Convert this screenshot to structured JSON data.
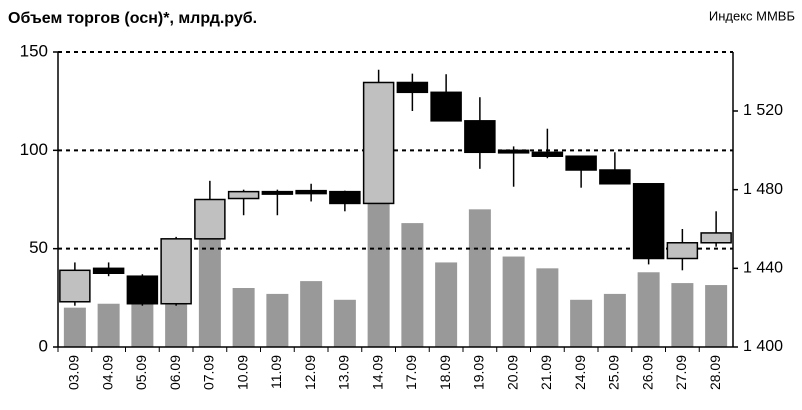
{
  "chart_data": {
    "type": "bar-candlestick",
    "title": "Объем торгов (осн)*, млрд.руб.",
    "y2label": "Индекс ММВБ",
    "categories": [
      "03.09",
      "04.09",
      "05.09",
      "06.09",
      "07.09",
      "10.09",
      "11.09",
      "12.09",
      "13.09",
      "14.09",
      "17.09",
      "18.09",
      "19.09",
      "20.09",
      "21.09",
      "24.09",
      "25.09",
      "26.09",
      "27.09",
      "28.09"
    ],
    "bars": {
      "color": "#999999",
      "values": [
        20,
        22,
        22,
        22,
        56,
        30,
        27,
        33.5,
        24,
        76,
        63,
        43,
        70,
        46,
        40,
        24,
        27,
        38,
        32.5,
        31.5
      ]
    },
    "candles": {
      "axis": "y2",
      "up_color": "#c0c0c0",
      "down_color": "#000000",
      "open": [
        1423,
        1440,
        1436,
        1422,
        1455,
        1475.5,
        1479,
        1479.5,
        1479,
        1473,
        1534.5,
        1529.5,
        1515,
        1500,
        1499,
        1497,
        1490,
        1483,
        1445,
        1453
      ],
      "high": [
        1443,
        1443,
        1437,
        1456,
        1484.5,
        1480,
        1480,
        1483,
        1479.5,
        1541,
        1539,
        1538.7,
        1527,
        1502,
        1511,
        1497,
        1499,
        1483,
        1460,
        1469
      ],
      "low": [
        1421,
        1436,
        1421,
        1421,
        1455,
        1467,
        1467,
        1474,
        1469,
        1473,
        1520,
        1515,
        1490.6,
        1481.5,
        1496,
        1481,
        1483,
        1442,
        1439,
        1451
      ],
      "close": [
        1439,
        1437.5,
        1422,
        1455,
        1475,
        1479,
        1478,
        1478,
        1473,
        1534.5,
        1529.5,
        1515,
        1499,
        1499,
        1497,
        1490,
        1483,
        1445,
        1453,
        1458
      ]
    },
    "ylim": [
      0,
      150
    ],
    "yticks": [
      0,
      50,
      100,
      150
    ],
    "y2lim": [
      1400,
      1550
    ],
    "y2ticks": [
      {
        "value": 1400,
        "label": "1 400"
      },
      {
        "value": 1440,
        "label": "1 440"
      },
      {
        "value": 1480,
        "label": "1 480"
      },
      {
        "value": 1520,
        "label": "1 520"
      }
    ],
    "grid": true
  }
}
